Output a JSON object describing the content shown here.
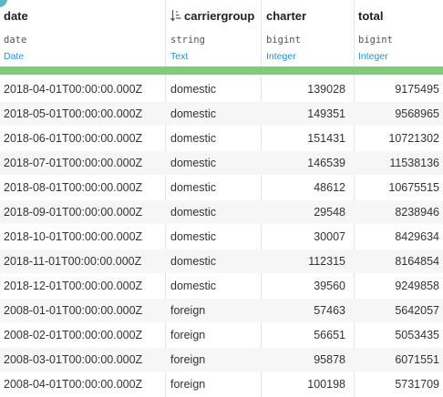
{
  "columns": [
    {
      "name": "date",
      "type": "date",
      "meaning": "Date"
    },
    {
      "name": "carriergroup",
      "type": "string",
      "meaning": "Text"
    },
    {
      "name": "charter",
      "type": "bigint",
      "meaning": "Integer"
    },
    {
      "name": "total",
      "type": "bigint",
      "meaning": "Integer"
    }
  ],
  "colors": {
    "quality_bar": "#84c87d",
    "meaning_link": "#2a8fd6",
    "row_alt": "#f6f6f6"
  },
  "icons": {
    "carriergroup_sort": "sort-ascending-icon"
  },
  "rows": [
    {
      "date": "2018-04-01T00:00:00.000Z",
      "carriergroup": "domestic",
      "charter": "139028",
      "total": "9175495"
    },
    {
      "date": "2018-05-01T00:00:00.000Z",
      "carriergroup": "domestic",
      "charter": "149351",
      "total": "9568965"
    },
    {
      "date": "2018-06-01T00:00:00.000Z",
      "carriergroup": "domestic",
      "charter": "151431",
      "total": "10721302"
    },
    {
      "date": "2018-07-01T00:00:00.000Z",
      "carriergroup": "domestic",
      "charter": "146539",
      "total": "11538136"
    },
    {
      "date": "2018-08-01T00:00:00.000Z",
      "carriergroup": "domestic",
      "charter": "48612",
      "total": "10675515"
    },
    {
      "date": "2018-09-01T00:00:00.000Z",
      "carriergroup": "domestic",
      "charter": "29548",
      "total": "8238946"
    },
    {
      "date": "2018-10-01T00:00:00.000Z",
      "carriergroup": "domestic",
      "charter": "30007",
      "total": "8429634"
    },
    {
      "date": "2018-11-01T00:00:00.000Z",
      "carriergroup": "domestic",
      "charter": "112315",
      "total": "8164854"
    },
    {
      "date": "2018-12-01T00:00:00.000Z",
      "carriergroup": "domestic",
      "charter": "39560",
      "total": "9249858"
    },
    {
      "date": "2008-01-01T00:00:00.000Z",
      "carriergroup": "foreign",
      "charter": "57463",
      "total": "5642057"
    },
    {
      "date": "2008-02-01T00:00:00.000Z",
      "carriergroup": "foreign",
      "charter": "56651",
      "total": "5053435"
    },
    {
      "date": "2008-03-01T00:00:00.000Z",
      "carriergroup": "foreign",
      "charter": "95878",
      "total": "6071551"
    },
    {
      "date": "2008-04-01T00:00:00.000Z",
      "carriergroup": "foreign",
      "charter": "100198",
      "total": "5731709"
    }
  ]
}
